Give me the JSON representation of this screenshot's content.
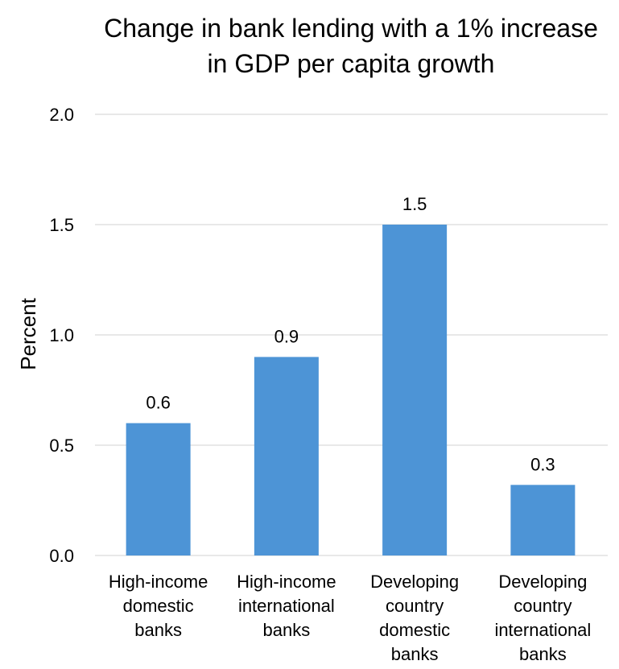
{
  "chart_data": {
    "type": "bar",
    "title_lines": [
      "Change in bank lending with a 1% increase",
      "in GDP per capita growth"
    ],
    "ylabel": "Percent",
    "xlabel": "",
    "ylim": [
      0,
      2.0
    ],
    "yticks": [
      "0.0",
      "0.5",
      "1.0",
      "1.5",
      "2.0"
    ],
    "ytick_values": [
      0,
      0.5,
      1.0,
      1.5,
      2.0
    ],
    "grid": true,
    "legend": "none",
    "bar_color": "#4d94d6",
    "categories": [
      [
        "High-income",
        "domestic",
        "banks"
      ],
      [
        "High-income",
        "international",
        "banks"
      ],
      [
        "Developing",
        "country",
        "domestic",
        "banks"
      ],
      [
        "Developing",
        "country",
        "international",
        "banks"
      ]
    ],
    "values": [
      0.6,
      0.9,
      1.5,
      0.32
    ],
    "data_labels": [
      "0.6",
      "0.9",
      "1.5",
      "0.3"
    ]
  }
}
